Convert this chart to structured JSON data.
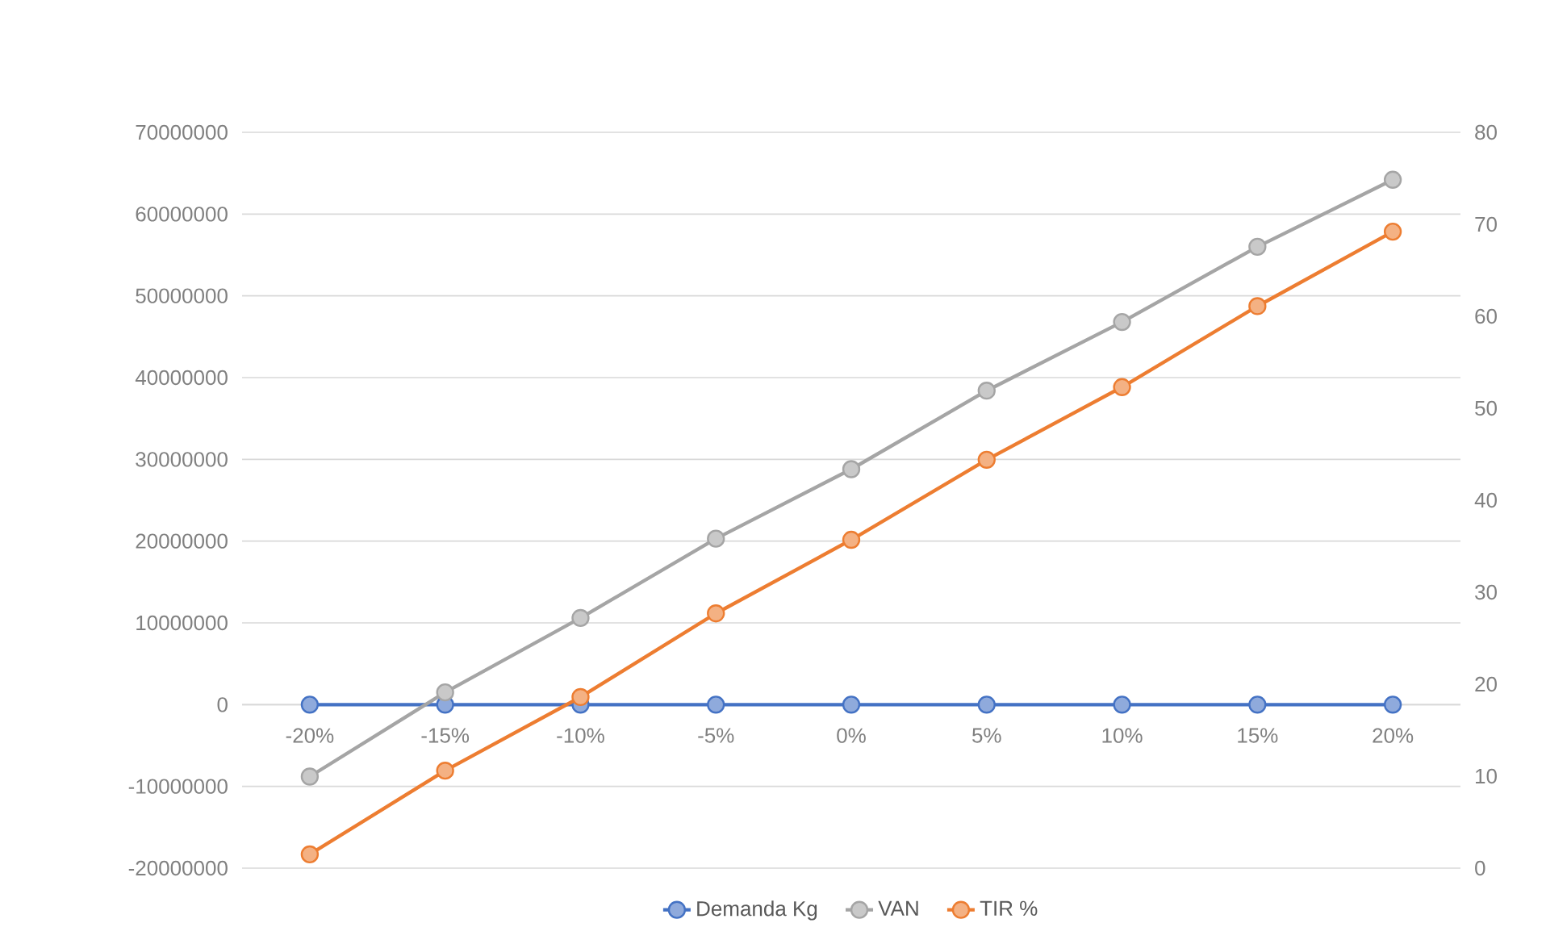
{
  "chart_data": {
    "type": "line",
    "categories": [
      "-20%",
      "-15%",
      "-10%",
      "-5%",
      "0%",
      "5%",
      "10%",
      "15%",
      "20%"
    ],
    "series": [
      {
        "name": "Demanda Kg",
        "color": "#4472c4",
        "values": [
          0,
          0,
          0,
          0,
          0,
          0,
          0,
          0,
          0
        ]
      },
      {
        "name": "VAN",
        "color": "#a5a5a5",
        "values": [
          -8800000,
          1500000,
          10600000,
          20300000,
          28800000,
          38400000,
          46800000,
          56000000,
          64200000
        ]
      },
      {
        "name": "TIR %",
        "color": "#ed7d31",
        "axis": "y2",
        "values": [
          1.5,
          10.6,
          18.6,
          27.7,
          35.7,
          44.4,
          52.3,
          61.1,
          69.2
        ]
      }
    ],
    "ylim": [
      -20000000,
      70000000
    ],
    "yticks": [
      -20000000,
      -10000000,
      0,
      10000000,
      20000000,
      30000000,
      40000000,
      50000000,
      60000000,
      70000000
    ],
    "y2lim": [
      0,
      80
    ],
    "y2ticks": [
      0,
      10,
      20,
      30,
      40,
      50,
      60,
      70,
      80
    ],
    "grid": "y",
    "legend": "bottom",
    "marker": "circle",
    "line_style": "solid"
  }
}
